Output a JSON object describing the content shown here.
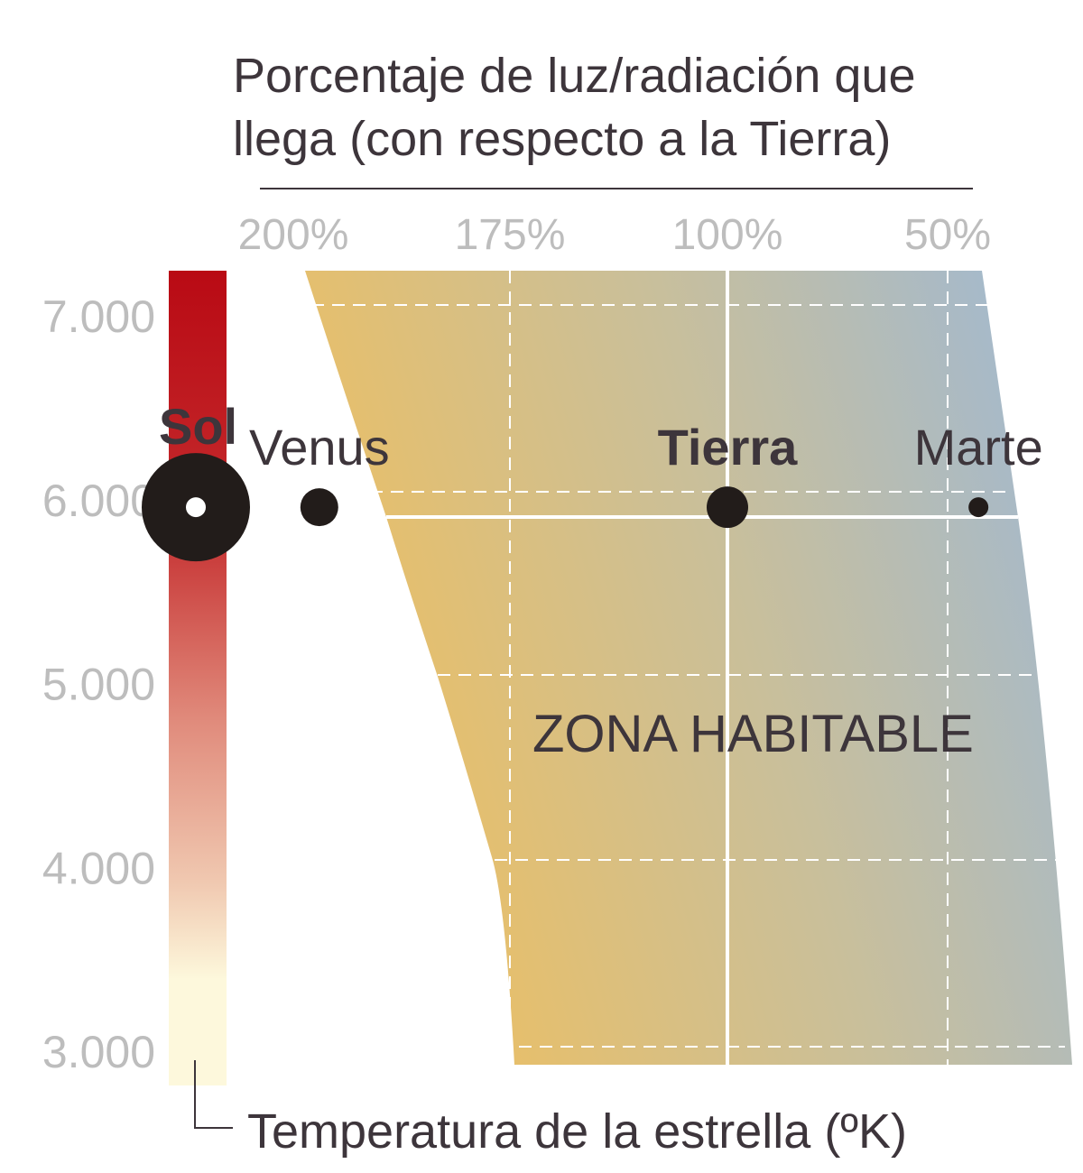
{
  "chart_data": {
    "type": "scatter",
    "title_lines": [
      "Porcentaje de luz/radiación que",
      "llega (con respecto a la Tierra)"
    ],
    "xlabel": "Porcentaje de luz/radiación que llega (con respecto a la Tierra)",
    "ylabel": "Temperatura de la estrella (ºK)",
    "x_ticks": [
      "200%",
      "175%",
      "100%",
      "50%"
    ],
    "x_tick_values": [
      200,
      175,
      100,
      50
    ],
    "y_ticks": [
      "7.000",
      "6.000",
      "5.000",
      "4.000",
      "3.000"
    ],
    "y_tick_values": [
      7000,
      6000,
      5000,
      4000,
      3000
    ],
    "ylim": [
      3000,
      7000
    ],
    "grid": true,
    "region_label": "ZONA HABITABLE",
    "star": {
      "name": "Sol",
      "temperature": 5900
    },
    "points": [
      {
        "name": "Venus",
        "x": 197,
        "y": 5900,
        "bold": false
      },
      {
        "name": "Tierra",
        "x": 100,
        "y": 5900,
        "bold": true
      },
      {
        "name": "Marte",
        "x": 43,
        "y": 5900,
        "bold": false
      }
    ],
    "colors": {
      "temp_hot": "#b90a14",
      "temp_cool": "#fdf8dc",
      "zone_warm": "#e9bf68",
      "zone_cool": "#9fb8d4",
      "dots": "#221c1a",
      "text": "#3d353b",
      "ticks": "#bdbdbd"
    }
  }
}
